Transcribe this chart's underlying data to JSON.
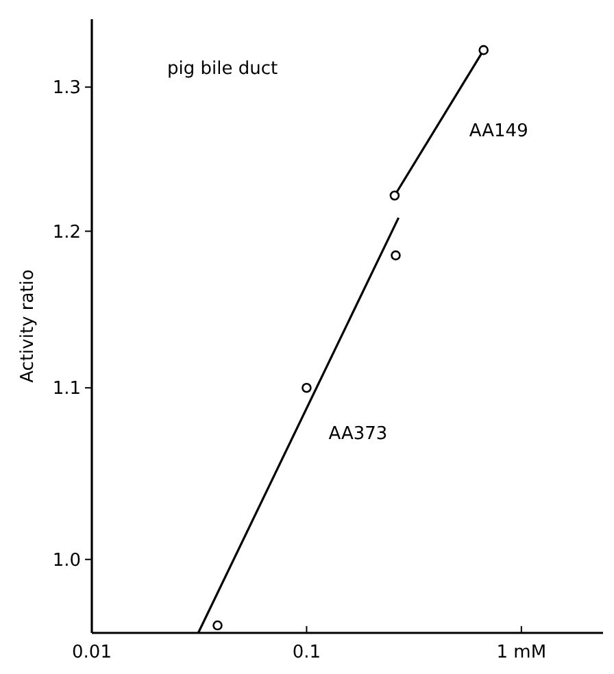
{
  "chart_data": {
    "type": "scatter",
    "title": "pig bile duct",
    "ylabel": "Activity ratio",
    "log": "xy",
    "xlim": [
      0.01,
      2.4
    ],
    "xticks": [
      0.01,
      0.1,
      {
        "value": 1,
        "label": "1 mM"
      }
    ],
    "ylim": [
      0.96,
      1.35
    ],
    "yticks": [
      {
        "value": 1,
        "label": "1.0"
      },
      1.1,
      1.2,
      1.3
    ],
    "marker": "circle",
    "line_style": "solid",
    "grid": false,
    "series": [
      {
        "name": "AA149",
        "type": "line",
        "color": "#000000",
        "x": [
          0.257,
          0.667
        ],
        "values": [
          1.224,
          1.327
        ]
      },
      {
        "color": "#000000",
        "x": [
          0.0385,
          0.1,
          0.26
        ],
        "values": [
          0.964,
          1.1,
          1.184
        ]
      },
      {
        "name": "AA373",
        "type": "line",
        "marker": "none",
        "color": "#000000",
        "x": [
          0.0313,
          0.268
        ],
        "values": [
          0.96,
          1.209
        ]
      }
    ]
  }
}
